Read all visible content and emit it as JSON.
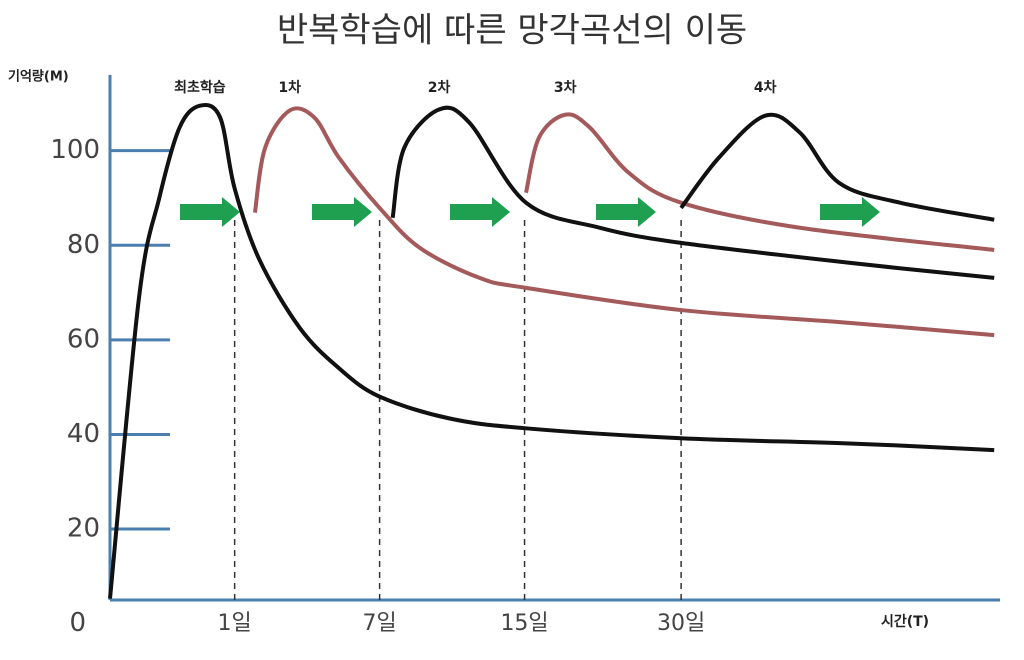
{
  "chart_data": {
    "type": "line",
    "title": "반복학습에 따른 망각곡선의 이동",
    "y_label": "기억량(M)",
    "x_label": "시간(T)",
    "xlim": [
      0.14,
      6.28
    ],
    "ylim": [
      5,
      116
    ],
    "xticks": [
      {
        "value": 1,
        "label": "1일"
      },
      {
        "value": 2,
        "label": "7일"
      },
      {
        "value": 3,
        "label": "15일"
      },
      {
        "value": 4.08,
        "label": "30일"
      }
    ],
    "yticks": [
      0,
      20,
      40,
      60,
      80,
      100
    ],
    "series": [
      {
        "name": "최초학습",
        "color": "#111111",
        "x": [
          0.14,
          0.34,
          0.48,
          0.62,
          0.76,
          0.9,
          1,
          1.17,
          1.45,
          1.72,
          2,
          2.48,
          3.01,
          4.08,
          5.24,
          6.24
        ],
        "values": [
          5.3,
          68.9,
          90,
          104.9,
          109.5,
          107,
          92,
          77,
          62.5,
          54,
          48,
          43.4,
          41.3,
          39.2,
          38.1,
          36.7
        ]
      },
      {
        "name": "1차",
        "color": "#a45a5a",
        "x": [
          1.14,
          1.21,
          1.38,
          1.55,
          1.72,
          2,
          2.28,
          2.69,
          3.01,
          4.08,
          5.24,
          6.24
        ],
        "values": [
          86.9,
          100.6,
          108.5,
          107,
          98.5,
          87.9,
          79.4,
          73.1,
          71,
          66.3,
          63.6,
          61
        ]
      },
      {
        "name": "2차",
        "color": "#111111",
        "x": [
          2.09,
          2.17,
          2.41,
          2.62,
          3.01,
          3.52,
          4.08,
          5.24,
          6.24
        ],
        "values": [
          85.8,
          100.6,
          108.7,
          105.9,
          89,
          83.7,
          80.5,
          76.3,
          73.1
        ]
      },
      {
        "name": "3차",
        "color": "#a45a5a",
        "x": [
          3.01,
          3.1,
          3.28,
          3.45,
          3.72,
          4.08,
          4.9,
          6.24
        ],
        "values": [
          91.1,
          102.8,
          107.6,
          104.9,
          95.3,
          89,
          83.7,
          79
        ]
      },
      {
        "name": "4차",
        "color": "#111111",
        "x": [
          4.08,
          4.34,
          4.66,
          4.9,
          5.17,
          5.59,
          6.24
        ],
        "values": [
          87.9,
          98.5,
          107.4,
          103.8,
          93.2,
          89,
          85.4
        ]
      }
    ]
  }
}
